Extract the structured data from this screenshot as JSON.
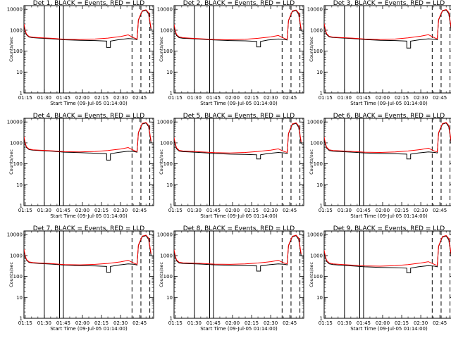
{
  "page": {
    "title_template": "Det {n}, BLACK = Events, RED = LLD"
  },
  "colors": {
    "events": "#000000",
    "lld": "#ff0000",
    "frame": "#000000",
    "background": "#ffffff"
  },
  "axes": {
    "ylabel": "Counts/sec",
    "xlabel": "Start Time (09-Jul-05 01:14:00)",
    "y_scale": "log",
    "ylim": [
      1,
      15000
    ],
    "y_ticks": [
      "1",
      "10",
      "100",
      "1000",
      "10000"
    ],
    "x_ticks": [
      "01:15",
      "01:30",
      "01:45",
      "02:00",
      "02:15",
      "02:30",
      "02:45"
    ],
    "xlim_minutes": [
      74,
      176
    ]
  },
  "chart_data": [
    {
      "type": "line",
      "detector": "1",
      "title": "Det 1, BLACK = Events, RED = LLD",
      "xlabel": "Start Time (09-Jul-05 01:14:00)",
      "ylabel": "Counts/sec",
      "series": [
        {
          "color": "#000000",
          "x": [
            74,
            75,
            76,
            78,
            81,
            86,
            96,
            106,
            118,
            130,
            139,
            139,
            142,
            142,
            148,
            156,
            161,
            163,
            164,
            167,
            170,
            172,
            174
          ],
          "y": [
            1800,
            900,
            600,
            470,
            440,
            420,
            390,
            350,
            330,
            320,
            300,
            150,
            150,
            300,
            350,
            400,
            380,
            350,
            3000,
            8000,
            9000,
            6000,
            1000
          ]
        },
        {
          "color": "#ff0000",
          "x": [
            74,
            75,
            76,
            78,
            81,
            86,
            96,
            106,
            118,
            130,
            140,
            150,
            156,
            161,
            163,
            164,
            167,
            170,
            172,
            174
          ],
          "y": [
            2000,
            1000,
            650,
            500,
            460,
            440,
            410,
            370,
            360,
            380,
            420,
            500,
            600,
            420,
            380,
            3200,
            8500,
            9500,
            7000,
            1200
          ]
        }
      ],
      "vlines_solid": [
        90,
        102,
        105
      ],
      "vlines_dashed": [
        159,
        166,
        173
      ]
    },
    {
      "type": "line",
      "detector": "2",
      "title": "Det 2, BLACK = Events, RED = LLD",
      "xlabel": "Start Time (09-Jul-05 01:14:00)",
      "ylabel": "Counts/sec",
      "series": [
        {
          "color": "#000000",
          "x": [
            74,
            75,
            76,
            78,
            81,
            86,
            96,
            106,
            118,
            130,
            139,
            139,
            142,
            142,
            148,
            156,
            161,
            163,
            164,
            167,
            170,
            172,
            174
          ],
          "y": [
            1700,
            850,
            560,
            440,
            410,
            400,
            370,
            340,
            320,
            310,
            290,
            160,
            160,
            290,
            340,
            380,
            360,
            340,
            2800,
            7800,
            8800,
            5800,
            900
          ]
        },
        {
          "color": "#ff0000",
          "x": [
            74,
            75,
            76,
            78,
            81,
            86,
            96,
            106,
            118,
            130,
            140,
            150,
            156,
            161,
            163,
            164,
            167,
            170,
            172,
            174
          ],
          "y": [
            1900,
            950,
            620,
            480,
            440,
            420,
            390,
            360,
            350,
            370,
            410,
            480,
            560,
            400,
            370,
            3000,
            8300,
            9300,
            6800,
            1100
          ]
        }
      ],
      "vlines_solid": [
        90,
        102,
        105
      ],
      "vlines_dashed": [
        159,
        166,
        173
      ]
    },
    {
      "type": "line",
      "detector": "3",
      "title": "Det 3, BLACK = Events, RED = LLD",
      "xlabel": "Start Time (09-Jul-05 01:14:00)",
      "ylabel": "Counts/sec",
      "series": [
        {
          "color": "#000000",
          "x": [
            74,
            75,
            76,
            78,
            81,
            86,
            96,
            106,
            118,
            130,
            139,
            139,
            142,
            142,
            148,
            156,
            161,
            163,
            164,
            167,
            170,
            172,
            174
          ],
          "y": [
            1900,
            950,
            620,
            480,
            450,
            430,
            400,
            360,
            330,
            320,
            300,
            140,
            140,
            300,
            340,
            390,
            370,
            350,
            3100,
            8200,
            9200,
            6200,
            1000
          ]
        },
        {
          "color": "#ff0000",
          "x": [
            74,
            75,
            76,
            78,
            81,
            86,
            96,
            106,
            118,
            130,
            140,
            150,
            156,
            161,
            163,
            164,
            167,
            170,
            172,
            174
          ],
          "y": [
            2100,
            1050,
            680,
            510,
            470,
            450,
            420,
            380,
            360,
            380,
            430,
            520,
            610,
            430,
            390,
            3300,
            8700,
            9700,
            7200,
            1300
          ]
        }
      ],
      "vlines_solid": [
        90,
        102,
        105
      ],
      "vlines_dashed": [
        159,
        166,
        173
      ]
    },
    {
      "type": "line",
      "detector": "4",
      "title": "Det 4, BLACK = Events, RED = LLD",
      "xlabel": "Start Time (09-Jul-05 01:14:00)",
      "ylabel": "Counts/sec",
      "series": [
        {
          "color": "#000000",
          "x": [
            74,
            75,
            76,
            78,
            81,
            86,
            96,
            106,
            118,
            130,
            139,
            139,
            142,
            142,
            148,
            156,
            161,
            163,
            164,
            167,
            170,
            172,
            174
          ],
          "y": [
            1800,
            900,
            600,
            480,
            450,
            430,
            400,
            360,
            340,
            320,
            300,
            150,
            150,
            300,
            350,
            400,
            380,
            360,
            3000,
            8000,
            9000,
            6000,
            1000
          ]
        },
        {
          "color": "#ff0000",
          "x": [
            74,
            75,
            76,
            78,
            81,
            86,
            96,
            106,
            118,
            130,
            140,
            150,
            156,
            161,
            163,
            164,
            167,
            170,
            172,
            174
          ],
          "y": [
            2000,
            1000,
            650,
            510,
            470,
            450,
            420,
            380,
            370,
            390,
            430,
            510,
            600,
            420,
            390,
            3200,
            8500,
            9500,
            7000,
            1200
          ]
        }
      ],
      "vlines_solid": [
        90,
        102,
        105
      ],
      "vlines_dashed": [
        159,
        166,
        173
      ]
    },
    {
      "type": "line",
      "detector": "5",
      "title": "Det 5, BLACK = Events, RED = LLD",
      "xlabel": "Start Time (09-Jul-05 01:14:00)",
      "ylabel": "Counts/sec",
      "series": [
        {
          "color": "#000000",
          "x": [
            74,
            75,
            76,
            78,
            81,
            86,
            96,
            106,
            118,
            130,
            139,
            139,
            142,
            142,
            148,
            156,
            161,
            163,
            164,
            167,
            170,
            172,
            174
          ],
          "y": [
            1600,
            800,
            520,
            400,
            380,
            370,
            340,
            310,
            290,
            280,
            270,
            170,
            170,
            270,
            310,
            350,
            330,
            310,
            2700,
            7600,
            8600,
            5600,
            900
          ]
        },
        {
          "color": "#ff0000",
          "x": [
            74,
            75,
            76,
            78,
            81,
            86,
            96,
            106,
            118,
            130,
            140,
            150,
            156,
            161,
            163,
            164,
            167,
            170,
            172,
            174
          ],
          "y": [
            1800,
            900,
            580,
            440,
            410,
            400,
            370,
            340,
            330,
            350,
            390,
            450,
            520,
            380,
            350,
            2900,
            8100,
            9100,
            6600,
            1100
          ]
        }
      ],
      "vlines_solid": [
        90,
        102,
        105
      ],
      "vlines_dashed": [
        159,
        166,
        173
      ]
    },
    {
      "type": "line",
      "detector": "6",
      "title": "Det 6, BLACK = Events, RED = LLD",
      "xlabel": "Start Time (09-Jul-05 01:14:00)",
      "ylabel": "Counts/sec",
      "series": [
        {
          "color": "#000000",
          "x": [
            74,
            75,
            76,
            78,
            81,
            86,
            96,
            106,
            118,
            130,
            139,
            139,
            142,
            142,
            148,
            156,
            161,
            163,
            164,
            167,
            170,
            172,
            174
          ],
          "y": [
            1700,
            850,
            560,
            430,
            400,
            390,
            360,
            330,
            310,
            300,
            290,
            170,
            170,
            290,
            330,
            370,
            350,
            330,
            2900,
            7900,
            8900,
            5900,
            950
          ]
        },
        {
          "color": "#ff0000",
          "x": [
            74,
            75,
            76,
            78,
            81,
            86,
            96,
            106,
            118,
            130,
            140,
            150,
            156,
            161,
            163,
            164,
            167,
            170,
            172,
            174
          ],
          "y": [
            1900,
            950,
            620,
            470,
            430,
            420,
            390,
            360,
            350,
            370,
            410,
            480,
            560,
            400,
            370,
            3100,
            8400,
            9400,
            6900,
            1150
          ]
        }
      ],
      "vlines_solid": [
        90,
        102,
        105
      ],
      "vlines_dashed": [
        159,
        166,
        173
      ]
    },
    {
      "type": "line",
      "detector": "7",
      "title": "Det 7, BLACK = Events, RED = LLD",
      "xlabel": "Start Time (09-Jul-05 01:14:00)",
      "ylabel": "Counts/sec",
      "series": [
        {
          "color": "#000000",
          "x": [
            74,
            75,
            76,
            78,
            81,
            86,
            96,
            106,
            118,
            130,
            139,
            139,
            142,
            142,
            148,
            156,
            161,
            163,
            164,
            167,
            170,
            172,
            174
          ],
          "y": [
            1800,
            900,
            600,
            470,
            440,
            420,
            390,
            350,
            330,
            320,
            300,
            160,
            160,
            300,
            350,
            400,
            380,
            350,
            3000,
            8000,
            9000,
            6000,
            1000
          ]
        },
        {
          "color": "#ff0000",
          "x": [
            74,
            75,
            76,
            78,
            81,
            86,
            96,
            106,
            118,
            130,
            140,
            150,
            156,
            161,
            163,
            164,
            167,
            170,
            172,
            174
          ],
          "y": [
            2000,
            1000,
            650,
            500,
            460,
            440,
            410,
            370,
            360,
            380,
            420,
            500,
            590,
            420,
            380,
            3200,
            8500,
            9500,
            7000,
            1200
          ]
        }
      ],
      "vlines_solid": [
        90,
        102,
        105
      ],
      "vlines_dashed": [
        159,
        166,
        173
      ]
    },
    {
      "type": "line",
      "detector": "8",
      "title": "Det 8, BLACK = Events, RED = LLD",
      "xlabel": "Start Time (09-Jul-05 01:14:00)",
      "ylabel": "Counts/sec",
      "series": [
        {
          "color": "#000000",
          "x": [
            74,
            75,
            76,
            78,
            81,
            86,
            96,
            106,
            118,
            130,
            139,
            139,
            142,
            142,
            148,
            156,
            161,
            163,
            164,
            167,
            170,
            172,
            174
          ],
          "y": [
            1700,
            850,
            560,
            440,
            420,
            410,
            390,
            360,
            340,
            330,
            320,
            180,
            180,
            320,
            360,
            400,
            380,
            360,
            2900,
            7900,
            8900,
            5900,
            950
          ]
        },
        {
          "color": "#ff0000",
          "x": [
            74,
            75,
            76,
            78,
            81,
            86,
            96,
            106,
            118,
            130,
            140,
            150,
            156,
            161,
            163,
            164,
            167,
            170,
            172,
            174
          ],
          "y": [
            1900,
            950,
            620,
            480,
            450,
            440,
            420,
            390,
            380,
            400,
            440,
            510,
            590,
            430,
            400,
            3100,
            8400,
            9400,
            6900,
            1150
          ]
        }
      ],
      "vlines_solid": [
        90,
        102,
        105
      ],
      "vlines_dashed": [
        159,
        166,
        173
      ]
    },
    {
      "type": "line",
      "detector": "9",
      "title": "Det 9, BLACK = Events, RED = LLD",
      "xlabel": "Start Time (09-Jul-05 01:14:00)",
      "ylabel": "Counts/sec",
      "series": [
        {
          "color": "#000000",
          "x": [
            74,
            75,
            76,
            78,
            81,
            86,
            96,
            106,
            118,
            130,
            139,
            139,
            142,
            142,
            148,
            156,
            161,
            163,
            164,
            167,
            170,
            172,
            174
          ],
          "y": [
            1600,
            800,
            520,
            400,
            370,
            350,
            320,
            290,
            270,
            260,
            250,
            150,
            150,
            250,
            290,
            330,
            310,
            290,
            2700,
            7600,
            8600,
            5600,
            900
          ]
        },
        {
          "color": "#ff0000",
          "x": [
            74,
            75,
            76,
            78,
            81,
            86,
            96,
            106,
            118,
            130,
            140,
            150,
            156,
            161,
            163,
            164,
            167,
            170,
            172,
            174
          ],
          "y": [
            1800,
            900,
            580,
            440,
            400,
            380,
            350,
            320,
            310,
            330,
            370,
            440,
            510,
            370,
            340,
            2900,
            8100,
            9100,
            6600,
            1100
          ]
        }
      ],
      "vlines_solid": [
        90,
        102,
        105
      ],
      "vlines_dashed": [
        159,
        166,
        173
      ]
    }
  ]
}
